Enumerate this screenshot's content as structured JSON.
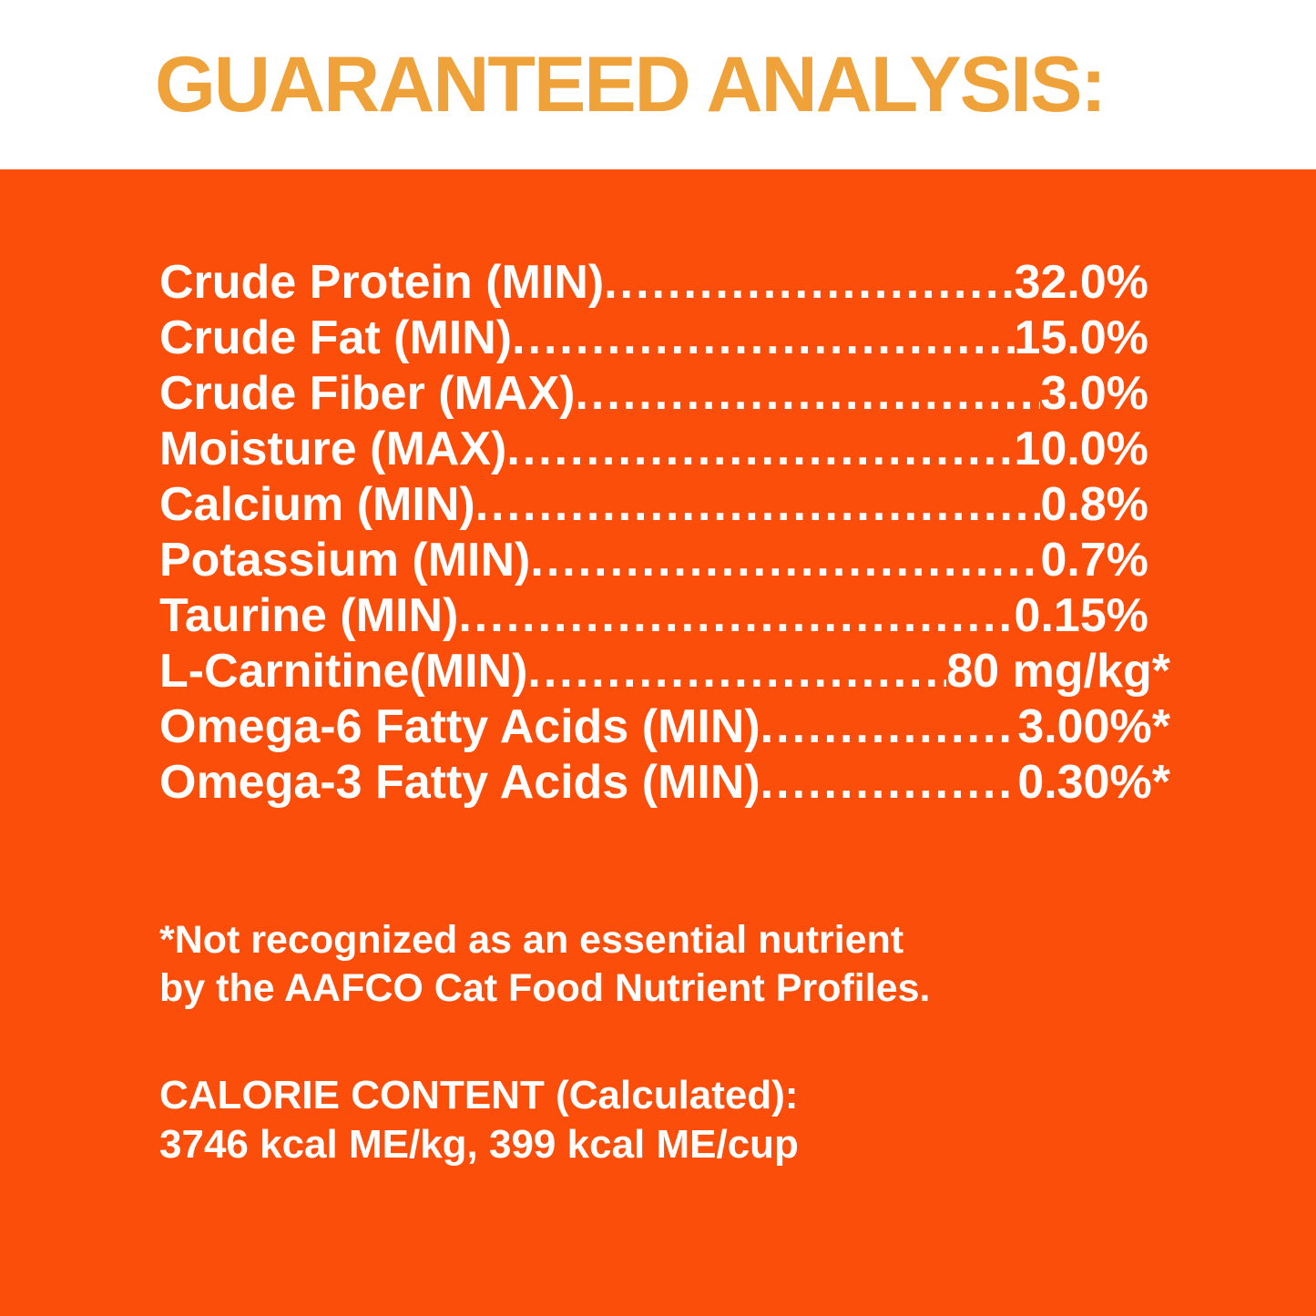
{
  "title": "GUARANTEED ANALYSIS:",
  "colors": {
    "heading_orange": "#F0A23A",
    "panel_orange": "#FA4E0A",
    "text_white": "#FFFFFF"
  },
  "analysis": {
    "rows": [
      {
        "label": "Crude Protein (MIN)",
        "value": "32.0%"
      },
      {
        "label": "Crude Fat (MIN)",
        "value": "15.0%"
      },
      {
        "label": "Crude Fiber (MAX)",
        "value": "3.0%"
      },
      {
        "label": "Moisture (MAX)",
        "value": "10.0%"
      },
      {
        "label": "Calcium (MIN)",
        "value": "0.8%"
      },
      {
        "label": "Potassium (MIN)",
        "value": "0.7%"
      },
      {
        "label": "Taurine (MIN)",
        "value": "0.15%"
      },
      {
        "label": "L-Carnitine(MIN)",
        "value": "80 mg/kg*"
      },
      {
        "label": "Omega-6 Fatty Acids (MIN)",
        "value": "3.00%*"
      },
      {
        "label": "Omega-3 Fatty Acids (MIN)",
        "value": "0.30%*"
      }
    ]
  },
  "footnote": {
    "line1": "*Not recognized as an essential nutrient",
    "line2": "by the AAFCO Cat Food Nutrient Profiles."
  },
  "calorie": {
    "heading": "CALORIE CONTENT (Calculated):",
    "values": "3746 kcal ME/kg, 399 kcal ME/cup"
  }
}
